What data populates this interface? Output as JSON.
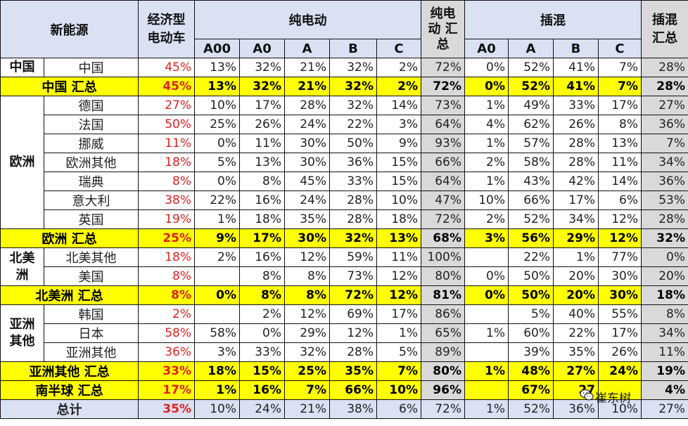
{
  "header": {
    "corner": "新能源",
    "econ_line1": "经济型",
    "econ_line2": "电动车",
    "bev": "纯电动",
    "bev_total_l1": "纯电",
    "bev_total_l2": "动 汇",
    "bev_total_l3": "总",
    "phev": "插混",
    "phev_total_l1": "插混",
    "phev_total_l2": "汇总",
    "bev_sub": [
      "A00",
      "A0",
      "A",
      "B",
      "C"
    ],
    "phev_sub": [
      "A0",
      "A",
      "B",
      "C"
    ]
  },
  "regions": {
    "china": "中国",
    "europe": "欧洲",
    "na_l1": "北美",
    "na_l2": "洲",
    "asia_l1": "亚洲",
    "asia_l2": "其他"
  },
  "rows": [
    {
      "name": "中国",
      "econ": "45%",
      "bev": [
        "13%",
        "32%",
        "21%",
        "32%",
        "2%"
      ],
      "bev_total": "72%",
      "phev": [
        "0%",
        "52%",
        "41%",
        "7%"
      ],
      "phev_total": "28%"
    },
    {
      "name": "中国 汇总",
      "econ": "45%",
      "bev": [
        "13%",
        "32%",
        "21%",
        "32%",
        "2%"
      ],
      "bev_total": "72%",
      "phev": [
        "0%",
        "52%",
        "41%",
        "7%"
      ],
      "phev_total": "28%"
    },
    {
      "name": "德国",
      "econ": "27%",
      "bev": [
        "10%",
        "17%",
        "28%",
        "32%",
        "14%"
      ],
      "bev_total": "73%",
      "phev": [
        "1%",
        "49%",
        "33%",
        "17%"
      ],
      "phev_total": "27%"
    },
    {
      "name": "法国",
      "econ": "50%",
      "bev": [
        "25%",
        "26%",
        "24%",
        "22%",
        "3%"
      ],
      "bev_total": "64%",
      "phev": [
        "4%",
        "62%",
        "26%",
        "8%"
      ],
      "phev_total": "36%"
    },
    {
      "name": "挪威",
      "econ": "11%",
      "bev": [
        "0%",
        "11%",
        "30%",
        "50%",
        "9%"
      ],
      "bev_total": "93%",
      "phev": [
        "1%",
        "57%",
        "28%",
        "13%"
      ],
      "phev_total": "7%"
    },
    {
      "name": "欧洲其他",
      "econ": "18%",
      "bev": [
        "5%",
        "13%",
        "30%",
        "36%",
        "15%"
      ],
      "bev_total": "66%",
      "phev": [
        "2%",
        "58%",
        "28%",
        "11%"
      ],
      "phev_total": "34%"
    },
    {
      "name": "瑞典",
      "econ": "8%",
      "bev": [
        "0%",
        "8%",
        "45%",
        "33%",
        "15%"
      ],
      "bev_total": "64%",
      "phev": [
        "1%",
        "43%",
        "42%",
        "14%"
      ],
      "phev_total": "36%"
    },
    {
      "name": "意大利",
      "econ": "38%",
      "bev": [
        "22%",
        "16%",
        "24%",
        "28%",
        "10%"
      ],
      "bev_total": "47%",
      "phev": [
        "10%",
        "66%",
        "17%",
        "6%"
      ],
      "phev_total": "53%"
    },
    {
      "name": "英国",
      "econ": "19%",
      "bev": [
        "1%",
        "18%",
        "35%",
        "28%",
        "18%"
      ],
      "bev_total": "72%",
      "phev": [
        "2%",
        "52%",
        "34%",
        "12%"
      ],
      "phev_total": "28%"
    },
    {
      "name": "欧洲 汇总",
      "econ": "25%",
      "bev": [
        "9%",
        "17%",
        "30%",
        "32%",
        "13%"
      ],
      "bev_total": "68%",
      "phev": [
        "3%",
        "56%",
        "29%",
        "12%"
      ],
      "phev_total": "32%"
    },
    {
      "name": "北美其他",
      "econ": "18%",
      "bev": [
        "2%",
        "16%",
        "12%",
        "59%",
        "11%"
      ],
      "bev_total": "100%",
      "phev": [
        "",
        "22%",
        "1%",
        "77%"
      ],
      "phev_total": "0%"
    },
    {
      "name": "美国",
      "econ": "8%",
      "bev": [
        "",
        "8%",
        "8%",
        "73%",
        "12%"
      ],
      "bev_total": "80%",
      "phev": [
        "0%",
        "50%",
        "20%",
        "30%"
      ],
      "phev_total": "20%"
    },
    {
      "name": "北美洲 汇总",
      "econ": "8%",
      "bev": [
        "0%",
        "8%",
        "8%",
        "72%",
        "12%"
      ],
      "bev_total": "81%",
      "phev": [
        "0%",
        "50%",
        "20%",
        "30%"
      ],
      "phev_total": "18%"
    },
    {
      "name": "韩国",
      "econ": "2%",
      "bev": [
        "",
        "2%",
        "12%",
        "69%",
        "17%"
      ],
      "bev_total": "86%",
      "phev": [
        "",
        "5%",
        "40%",
        "55%"
      ],
      "phev_total": "8%"
    },
    {
      "name": "日本",
      "econ": "58%",
      "bev": [
        "58%",
        "0%",
        "29%",
        "12%",
        "1%"
      ],
      "bev_total": "65%",
      "phev": [
        "1%",
        "60%",
        "22%",
        "17%"
      ],
      "phev_total": "34%"
    },
    {
      "name": "亚洲其他",
      "econ": "36%",
      "bev": [
        "3%",
        "33%",
        "32%",
        "28%",
        "5%"
      ],
      "bev_total": "89%",
      "phev": [
        "",
        "39%",
        "35%",
        "26%"
      ],
      "phev_total": "11%"
    },
    {
      "name": "亚洲其他 汇总",
      "econ": "33%",
      "bev": [
        "18%",
        "15%",
        "25%",
        "35%",
        "7%"
      ],
      "bev_total": "80%",
      "phev": [
        "1%",
        "48%",
        "27%",
        "24%"
      ],
      "phev_total": "19%"
    },
    {
      "name": "南半球 汇总",
      "econ": "17%",
      "bev": [
        "1%",
        "16%",
        "7%",
        "66%",
        "10%"
      ],
      "bev_total": "96%",
      "phev": [
        "",
        "67%",
        "27",
        ""
      ],
      "phev_total": "4%"
    },
    {
      "name": "总计",
      "econ": "35%",
      "bev": [
        "10%",
        "24%",
        "21%",
        "38%",
        "6%"
      ],
      "bev_total": "72%",
      "phev": [
        "1%",
        "52%",
        "36%",
        "10%"
      ],
      "phev_total": "27%"
    }
  ],
  "watermark": {
    "text": "崔东树",
    "icon": "wechat-icon"
  }
}
